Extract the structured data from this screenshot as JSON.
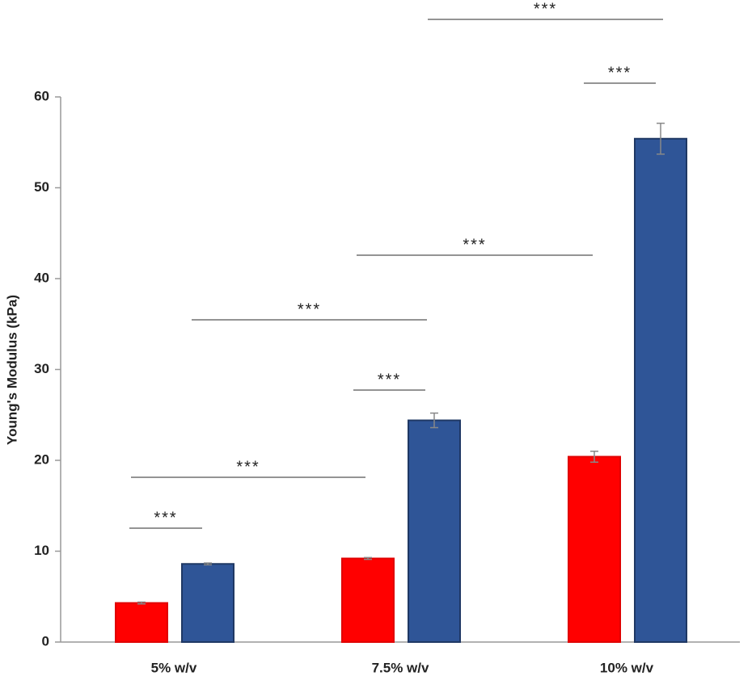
{
  "chart_data": {
    "type": "bar",
    "y_label": "Young's Modulus (kPa)",
    "categories": [
      "5% w/v",
      "7.5% w/v",
      "10% w/v"
    ],
    "series": [
      {
        "color": "#ff0000",
        "values": [
          4.3,
          9.2,
          20.4
        ],
        "errors": [
          0.1,
          0.1,
          0.6
        ]
      },
      {
        "color": "#2f5597",
        "values": [
          8.6,
          24.4,
          55.4
        ],
        "errors": [
          0.1,
          0.8,
          1.7
        ]
      }
    ],
    "ylim": [
      0,
      60
    ],
    "yticks": [
      0,
      10,
      20,
      30,
      40,
      50,
      60
    ],
    "annotations": [
      "***",
      "***",
      "***",
      "***",
      "***",
      "***",
      "***"
    ]
  }
}
